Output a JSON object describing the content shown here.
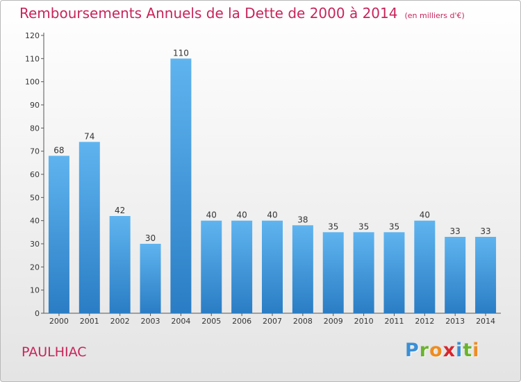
{
  "title": "Remboursements Annuels de la Dette de 2000 à 2014",
  "subtitle": "(en milliers d'€)",
  "commune": "PAULHIAC",
  "logo": {
    "letters": [
      "P",
      "r",
      "o",
      "x",
      "i",
      "t",
      "i"
    ],
    "colors": [
      "#3a8fd6",
      "#6ab42d",
      "#f08c1e",
      "#d9262e",
      "#3a8fd6",
      "#6ab42d",
      "#f08c1e"
    ]
  },
  "colors": {
    "bar_light": "#5fb4ef",
    "bar_dark": "#2a7dc4",
    "title": "#c8245a",
    "axis": "#555555"
  },
  "chart_data": {
    "type": "bar",
    "categories": [
      "2000",
      "2001",
      "2002",
      "2003",
      "2004",
      "2005",
      "2006",
      "2007",
      "2008",
      "2009",
      "2010",
      "2011",
      "2012",
      "2013",
      "2014"
    ],
    "values": [
      68,
      74,
      42,
      30,
      110,
      40,
      40,
      40,
      38,
      35,
      35,
      35,
      40,
      33,
      33
    ],
    "title": "Remboursements Annuels de la Dette de 2000 à 2014",
    "ylim": [
      0,
      120
    ],
    "yticks": [
      0,
      10,
      20,
      30,
      40,
      50,
      60,
      70,
      80,
      90,
      100,
      110,
      120
    ],
    "grid": false,
    "data_labels": true
  }
}
